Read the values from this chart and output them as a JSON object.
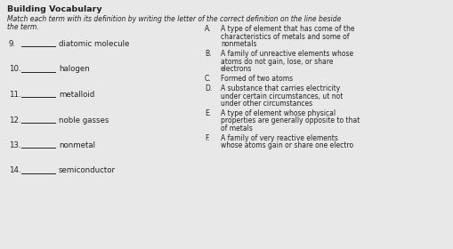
{
  "title": "Building Vocabulary",
  "subtitle_line1": "Match each term with its definition by writing the letter of the correct definition on the line beside",
  "subtitle_line2": "the term.",
  "background_color": "#e8e8e8",
  "text_color": "#222222",
  "terms": [
    {
      "num": "9.",
      "term": "diatomic molecule"
    },
    {
      "num": "10.",
      "term": "halogen"
    },
    {
      "num": "11.",
      "term": "metalloid"
    },
    {
      "num": "12.",
      "term": "noble gasses"
    },
    {
      "num": "13.",
      "term": "nonmetal"
    },
    {
      "num": "14.",
      "term": "semiconductor"
    }
  ],
  "definitions": [
    {
      "letter": "A.",
      "lines": [
        "A type of element that has come of the",
        "characteristics of metals and some of",
        "nonmetals"
      ]
    },
    {
      "letter": "B.",
      "lines": [
        "A family of unreactive elements whose",
        "atoms do not gain, lose, or share",
        "electrons"
      ]
    },
    {
      "letter": "C.",
      "lines": [
        "Formed of two atoms"
      ]
    },
    {
      "letter": "D.",
      "lines": [
        "A substance that carries electricity",
        "under certain circumstances, ut not",
        "under other circumstances"
      ]
    },
    {
      "letter": "E.",
      "lines": [
        "A type of element whose physical",
        "properties are generally opposite to that",
        "of metals"
      ]
    },
    {
      "letter": "F.",
      "lines": [
        "A family of very reactive elements",
        "whose atoms gain or share one electro"
      ]
    }
  ],
  "title_fontsize": 6.8,
  "subtitle_fontsize": 5.5,
  "term_fontsize": 6.2,
  "def_fontsize": 5.5,
  "fig_width": 5.09,
  "fig_height": 2.8,
  "dpi": 100
}
